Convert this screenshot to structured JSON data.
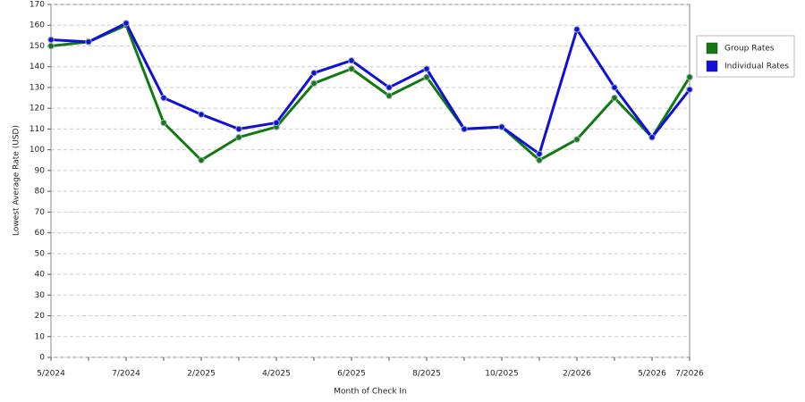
{
  "chart_data": {
    "type": "line",
    "x_label": "Month of Check In",
    "y_label": "Lowest Average Rate (USD)",
    "categories": [
      "5/2024",
      null,
      "7/2024",
      null,
      "2/2025",
      null,
      "4/2025",
      null,
      "6/2025",
      null,
      "8/2025",
      null,
      "10/2025",
      null,
      "2/2026",
      null,
      "5/2026",
      "7/2026"
    ],
    "series": [
      {
        "name": "Group Rates",
        "color": "#127a12",
        "values": [
          150,
          152,
          160,
          113,
          95,
          106,
          111,
          132,
          139,
          126,
          135,
          110,
          111,
          95,
          105,
          125,
          106,
          135
        ]
      },
      {
        "name": "Individual Rates",
        "color": "#1010d8",
        "values": [
          153,
          152,
          161,
          125,
          117,
          110,
          113,
          137,
          143,
          130,
          139,
          110,
          111,
          98,
          158,
          130,
          106,
          129
        ]
      }
    ],
    "ylim": [
      0,
      170
    ],
    "yticks": [
      0,
      10,
      20,
      30,
      40,
      50,
      60,
      70,
      80,
      90,
      100,
      110,
      120,
      130,
      140,
      150,
      160,
      170
    ],
    "grid": true,
    "legend": "right"
  }
}
